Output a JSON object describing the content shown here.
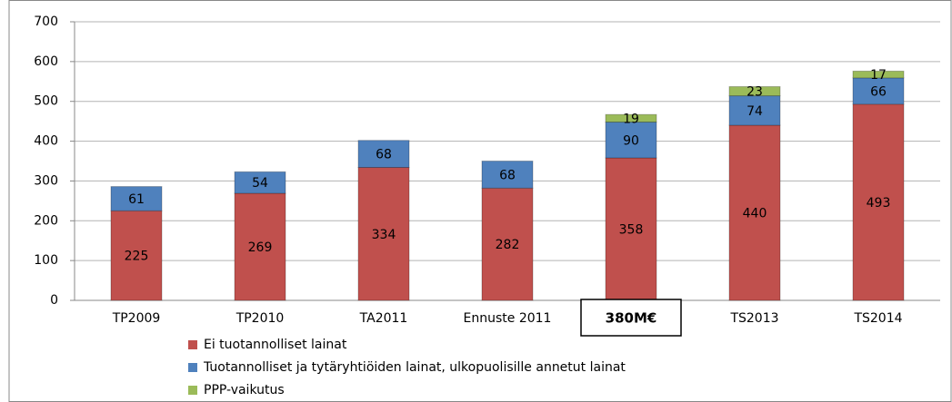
{
  "chart_data": {
    "type": "stacked-bar",
    "categories": [
      "TP2009",
      "TP2010",
      "TA2011",
      "Ennuste 2011",
      null,
      "TS2013",
      "TS2014"
    ],
    "annotation": "380M€",
    "series": [
      {
        "name": "Ei tuotannolliset lainat",
        "color": "#c0504d",
        "values": [
          225,
          269,
          334,
          282,
          358,
          440,
          493
        ]
      },
      {
        "name": "Tuotannolliset ja tytäryhtiöiden lainat, ulkopuolisille annetut lainat",
        "color": "#4f81bd",
        "values": [
          61,
          54,
          68,
          68,
          90,
          74,
          66
        ]
      },
      {
        "name": "PPP-vaikutus",
        "color": "#9bbb59",
        "values": [
          null,
          null,
          null,
          null,
          19,
          23,
          17
        ]
      }
    ],
    "ylim": [
      0,
      700
    ],
    "yticks": [
      0,
      100,
      200,
      300,
      400,
      500,
      600,
      700
    ],
    "grid": true
  }
}
